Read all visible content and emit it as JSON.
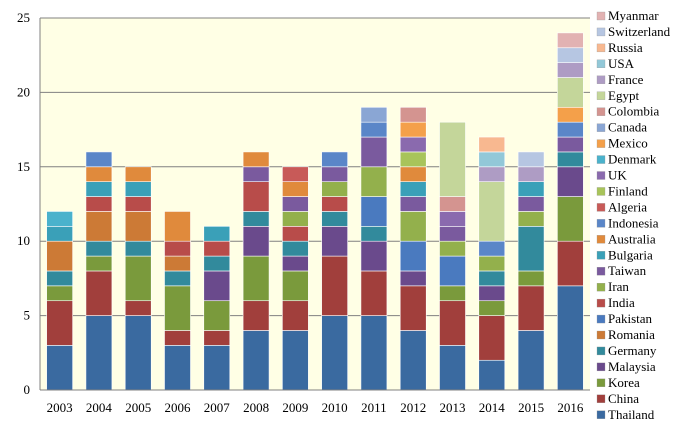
{
  "chart_data": {
    "type": "bar",
    "stacked": true,
    "categories": [
      "2003",
      "2004",
      "2005",
      "2006",
      "2007",
      "2008",
      "2009",
      "2010",
      "2011",
      "2012",
      "2013",
      "2014",
      "2015",
      "2016"
    ],
    "ylim": [
      0,
      25
    ],
    "yticks": [
      0,
      5,
      10,
      15,
      20,
      25
    ],
    "grid": true,
    "legend_position": "right",
    "series": [
      {
        "name": "Thailand",
        "color": "#3a6aa0",
        "values": [
          3,
          5,
          5,
          3,
          3,
          4,
          4,
          5,
          5,
          4,
          3,
          2,
          4,
          7
        ]
      },
      {
        "name": "China",
        "color": "#a13f3c",
        "values": [
          3,
          3,
          1,
          1,
          1,
          2,
          2,
          4,
          3,
          3,
          3,
          3,
          3,
          3
        ]
      },
      {
        "name": "Korea",
        "color": "#7a9a3c",
        "values": [
          1,
          1,
          3,
          3,
          2,
          3,
          2,
          0,
          0,
          0,
          1,
          1,
          1,
          3
        ]
      },
      {
        "name": "Malaysia",
        "color": "#6a4a8c",
        "values": [
          0,
          0,
          0,
          0,
          2,
          2,
          1,
          2,
          2,
          1,
          0,
          1,
          0,
          2
        ]
      },
      {
        "name": "Germany",
        "color": "#328a9c",
        "values": [
          1,
          1,
          1,
          1,
          1,
          1,
          1,
          1,
          1,
          0,
          0,
          1,
          3,
          1
        ]
      },
      {
        "name": "Romania",
        "color": "#cc7a36",
        "values": [
          2,
          2,
          2,
          1,
          0,
          0,
          0,
          0,
          0,
          0,
          0,
          0,
          0,
          0
        ]
      },
      {
        "name": "Pakistan",
        "color": "#4a7abf",
        "values": [
          0,
          0,
          0,
          0,
          0,
          0,
          0,
          0,
          2,
          2,
          2,
          0,
          0,
          0
        ]
      },
      {
        "name": "India",
        "color": "#b84c4a",
        "values": [
          0,
          1,
          1,
          1,
          1,
          2,
          1,
          1,
          0,
          0,
          0,
          0,
          0,
          0
        ]
      },
      {
        "name": "Iran",
        "color": "#93b04c",
        "values": [
          0,
          0,
          0,
          0,
          0,
          0,
          1,
          1,
          2,
          2,
          1,
          1,
          1,
          0
        ]
      },
      {
        "name": "Taiwan",
        "color": "#7a5a9e",
        "values": [
          0,
          0,
          0,
          0,
          0,
          1,
          1,
          1,
          2,
          1,
          1,
          0,
          1,
          1
        ]
      },
      {
        "name": "Bulgaria",
        "color": "#3aa0b8",
        "values": [
          1,
          1,
          1,
          0,
          1,
          0,
          0,
          0,
          0,
          1,
          0,
          0,
          1,
          0
        ]
      },
      {
        "name": "Australia",
        "color": "#e08a3c",
        "values": [
          0,
          1,
          1,
          2,
          0,
          1,
          1,
          0,
          0,
          1,
          0,
          0,
          0,
          0
        ]
      },
      {
        "name": "Indonesia",
        "color": "#5a86c8",
        "values": [
          0,
          1,
          0,
          0,
          0,
          0,
          0,
          1,
          1,
          0,
          0,
          1,
          0,
          1
        ]
      },
      {
        "name": "Algeria",
        "color": "#c85a58",
        "values": [
          0,
          0,
          0,
          0,
          0,
          0,
          1,
          0,
          0,
          0,
          0,
          0,
          0,
          0
        ]
      },
      {
        "name": "Finland",
        "color": "#a8c45a",
        "values": [
          0,
          0,
          0,
          0,
          0,
          0,
          0,
          0,
          0,
          1,
          0,
          0,
          0,
          0
        ]
      },
      {
        "name": "UK",
        "color": "#8a6aae",
        "values": [
          0,
          0,
          0,
          0,
          0,
          0,
          0,
          0,
          0,
          1,
          1,
          0,
          0,
          0
        ]
      },
      {
        "name": "Denmark",
        "color": "#4ab2cc",
        "values": [
          1,
          0,
          0,
          0,
          0,
          0,
          0,
          0,
          0,
          0,
          0,
          0,
          0,
          0
        ]
      },
      {
        "name": "Mexico",
        "color": "#f4a04a",
        "values": [
          0,
          0,
          0,
          0,
          0,
          0,
          0,
          0,
          0,
          1,
          0,
          0,
          0,
          1
        ]
      },
      {
        "name": "Canada",
        "color": "#8aa6d4",
        "values": [
          0,
          0,
          0,
          0,
          0,
          0,
          0,
          0,
          1,
          0,
          0,
          0,
          0,
          0
        ]
      },
      {
        "name": "Colombia",
        "color": "#d49490",
        "values": [
          0,
          0,
          0,
          0,
          0,
          0,
          0,
          0,
          0,
          1,
          1,
          0,
          0,
          0
        ]
      },
      {
        "name": "Egypt",
        "color": "#c4d69a",
        "values": [
          0,
          0,
          0,
          0,
          0,
          0,
          0,
          0,
          0,
          0,
          5,
          4,
          0,
          2
        ]
      },
      {
        "name": "France",
        "color": "#ae9cc4",
        "values": [
          0,
          0,
          0,
          0,
          0,
          0,
          0,
          0,
          0,
          0,
          0,
          1,
          1,
          1
        ]
      },
      {
        "name": "USA",
        "color": "#92c8d8",
        "values": [
          0,
          0,
          0,
          0,
          0,
          0,
          0,
          0,
          0,
          0,
          0,
          1,
          0,
          0
        ]
      },
      {
        "name": "Russia",
        "color": "#f8b890",
        "values": [
          0,
          0,
          0,
          0,
          0,
          0,
          0,
          0,
          0,
          0,
          0,
          1,
          0,
          0
        ]
      },
      {
        "name": "Switzerland",
        "color": "#b6c6e2",
        "values": [
          0,
          0,
          0,
          0,
          0,
          0,
          0,
          0,
          0,
          0,
          0,
          0,
          1,
          1
        ]
      },
      {
        "name": "Myanmar",
        "color": "#e2b2b2",
        "values": [
          0,
          0,
          0,
          0,
          0,
          0,
          0,
          0,
          0,
          0,
          0,
          0,
          0,
          1
        ]
      }
    ],
    "legend_order": [
      "Myanmar",
      "Switzerland",
      "Russia",
      "USA",
      "France",
      "Egypt",
      "Colombia",
      "Canada",
      "Mexico",
      "Denmark",
      "UK",
      "Finland",
      "Algeria",
      "Indonesia",
      "Australia",
      "Bulgaria",
      "Taiwan",
      "Iran",
      "India",
      "Pakistan",
      "Romania",
      "Germany",
      "Malaysia",
      "Korea",
      "China",
      "Thailand"
    ],
    "title": "",
    "xlabel": "",
    "ylabel": ""
  }
}
